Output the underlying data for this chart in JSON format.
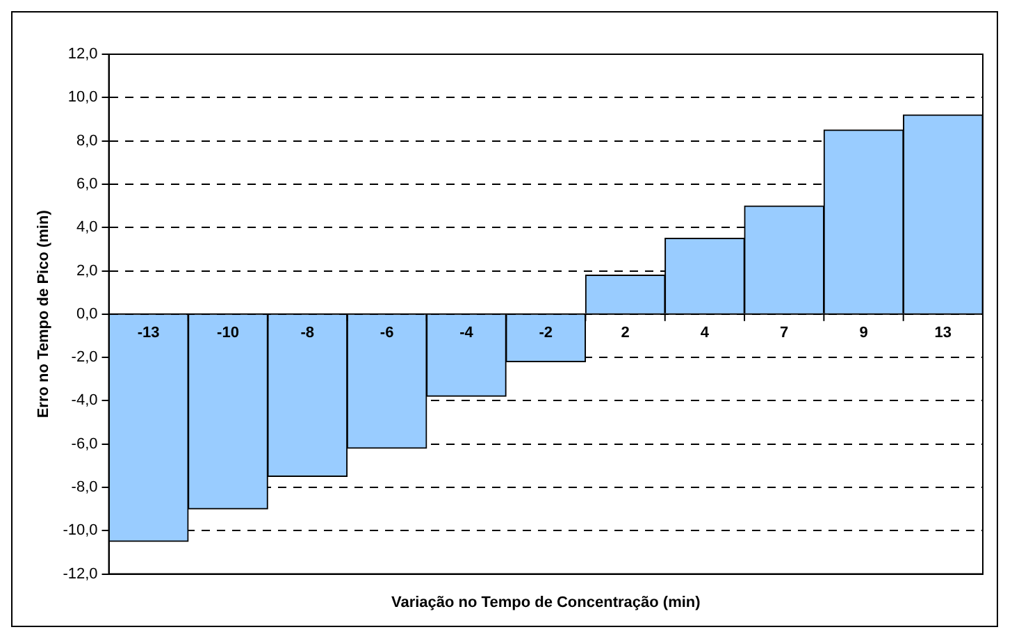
{
  "chart_data": {
    "type": "bar",
    "xlabel": "Variação no Tempo de Concentração (min)",
    "ylabel": "Erro no Tempo de Pico (min)",
    "categories": [
      "-13",
      "-10",
      "-8",
      "-6",
      "-4",
      "-2",
      "2",
      "4",
      "7",
      "9",
      "13"
    ],
    "values": [
      -10.5,
      -9.0,
      -7.5,
      -6.2,
      -3.8,
      -2.2,
      1.8,
      3.5,
      5.0,
      8.5,
      9.2
    ],
    "color": "#99ccff",
    "ylim": [
      -12,
      12
    ],
    "yticks": [
      {
        "value": -12,
        "label": "-12,0"
      },
      {
        "value": -10,
        "label": "-10,0"
      },
      {
        "value": -8,
        "label": "-8,0"
      },
      {
        "value": -6,
        "label": "-6,0"
      },
      {
        "value": -4,
        "label": "-4,0"
      },
      {
        "value": -2,
        "label": "-2,0"
      },
      {
        "value": 0,
        "label": "0,0"
      },
      {
        "value": 2,
        "label": "2,0"
      },
      {
        "value": 4,
        "label": "4,0"
      },
      {
        "value": 6,
        "label": "6,0"
      },
      {
        "value": 8,
        "label": "8,0"
      },
      {
        "value": 10,
        "label": "10,0"
      },
      {
        "value": 12,
        "label": "12,0"
      }
    ],
    "grid": "y",
    "legend": false
  }
}
